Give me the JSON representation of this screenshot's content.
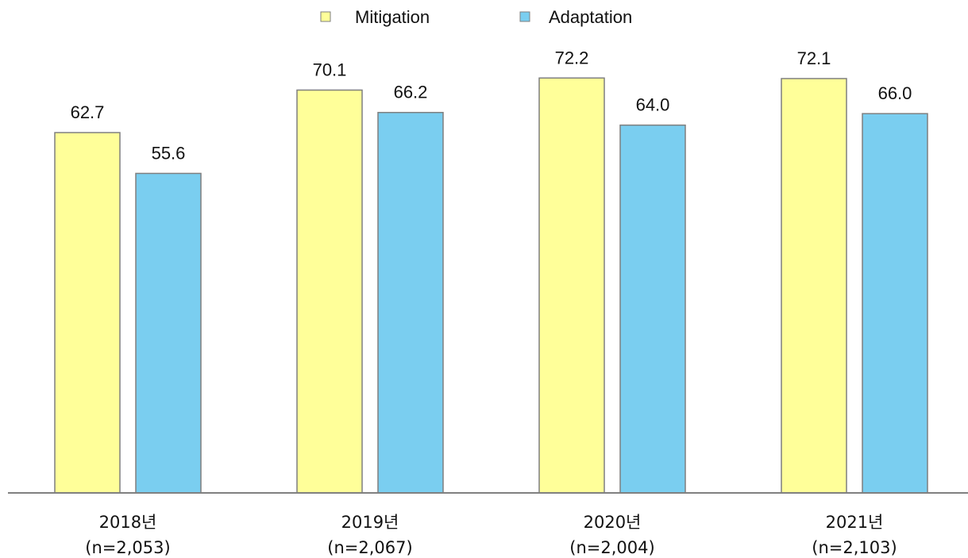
{
  "chart_data": {
    "type": "bar",
    "categories": [
      "2018년",
      "2019년",
      "2020년",
      "2021년"
    ],
    "category_sublabels": [
      "(n=2,053)",
      "(n=2,067)",
      "(n=2,004)",
      "(n=2,103)"
    ],
    "series": [
      {
        "name": "Mitigation",
        "values": [
          62.7,
          70.1,
          72.2,
          72.1
        ],
        "color": "#FFFF99"
      },
      {
        "name": "Adaptation",
        "values": [
          55.6,
          66.2,
          64.0,
          66.0
        ],
        "color": "#7ACEF0"
      }
    ],
    "value_labels": [
      [
        "62.7",
        "70.1",
        "72.2",
        "72.1"
      ],
      [
        "55.6",
        "66.2",
        "64.0",
        "66.0"
      ]
    ],
    "title": "",
    "xlabel": "",
    "ylabel": "",
    "ylim": [
      0,
      100
    ],
    "grid": false,
    "legend": "top-center",
    "bar_border_color": "#7F7F7F",
    "axis_color": "#808080"
  }
}
